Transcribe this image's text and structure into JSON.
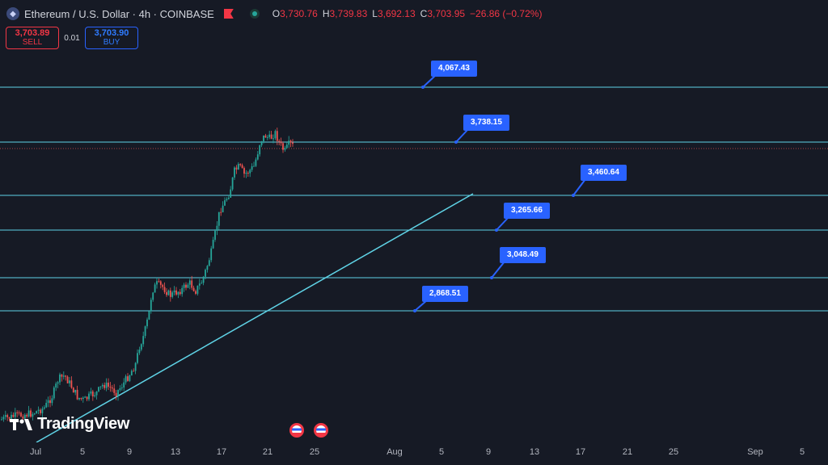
{
  "header": {
    "symbol_icon": "ethereum-icon",
    "symbol_title": "Ethereum / U.S. Dollar · 4h · COINBASE",
    "ohlc": {
      "o_label": "O",
      "o_value": "3,730.76",
      "h_label": "H",
      "h_value": "3,739.83",
      "l_label": "L",
      "l_value": "3,692.13",
      "c_label": "C",
      "c_value": "3,703.95",
      "change": "−26.86 (−0.72%)"
    }
  },
  "trade": {
    "sell_price": "3,703.89",
    "sell_label": "SELL",
    "spread": "0.01",
    "buy_price": "3,703.90",
    "buy_label": "BUY"
  },
  "levels": [
    {
      "label": "4,067.43"
    },
    {
      "label": "3,738.15"
    },
    {
      "label": "3,460.64"
    },
    {
      "label": "3,265.66"
    },
    {
      "label": "3,048.49"
    },
    {
      "label": "2,868.51"
    }
  ],
  "time_axis": {
    "ticks": [
      "Jul",
      "5",
      "9",
      "13",
      "17",
      "21",
      "25",
      "Aug",
      "5",
      "9",
      "13",
      "17",
      "21",
      "25",
      "Sep",
      "5"
    ]
  },
  "watermark": "TradingView",
  "colors": {
    "up": "#26a69a",
    "down": "#ef5350",
    "level_line": "#5fd3e6",
    "label_bg": "#2962ff"
  }
}
